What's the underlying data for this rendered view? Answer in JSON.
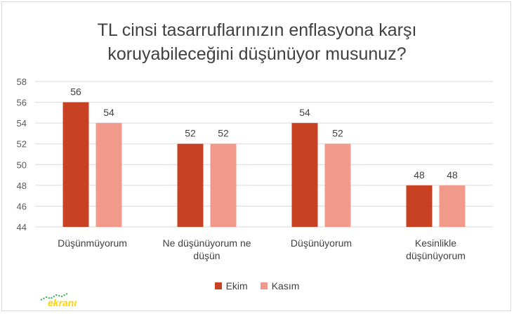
{
  "chart_data": {
    "type": "bar",
    "title_lines": [
      "TL cinsi tasarruflarınızın enflasyona karşı",
      "koruyabileceğini düşünüyor musunuz?"
    ],
    "categories": [
      [
        "Düşünmüyorum"
      ],
      [
        "Ne düşünüyorum ne",
        "düşün"
      ],
      [
        "Düşünüyorum"
      ],
      [
        "Kesinlikle",
        "düşünüyorum"
      ]
    ],
    "series": [
      {
        "name": "Ekim",
        "values": [
          56,
          52,
          54,
          48
        ],
        "color": "#c84123"
      },
      {
        "name": "Kasım",
        "values": [
          54,
          52,
          52,
          48
        ],
        "color": "#f19a8b"
      }
    ],
    "ylim": [
      44,
      58
    ],
    "yticks": [
      44,
      46,
      48,
      50,
      52,
      54,
      56,
      58
    ],
    "grid": true,
    "legend_position": "bottom"
  },
  "watermark": "ekranı"
}
